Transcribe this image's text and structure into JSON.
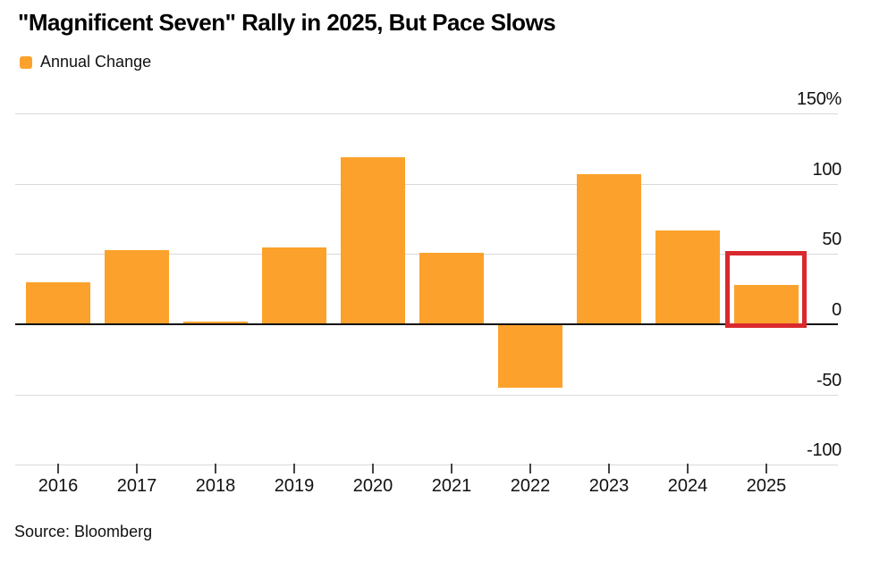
{
  "header": {
    "title": "\"Magnificent Seven\" Rally in 2025, But Pace Slows"
  },
  "legend": {
    "label": "Annual Change"
  },
  "source": {
    "text": "Source: Bloomberg"
  },
  "colors": {
    "bar": "#FCA22C",
    "highlight": "#D9292E",
    "grid": "#D9D9D9",
    "zero_line": "#111111"
  },
  "highlight": {
    "year": "2025"
  },
  "chart_data": {
    "type": "bar",
    "title": "\"Magnificent Seven\" Rally in 2025, But Pace Slows",
    "series_name": "Annual Change",
    "categories": [
      "2016",
      "2017",
      "2018",
      "2019",
      "2020",
      "2021",
      "2022",
      "2023",
      "2024",
      "2025"
    ],
    "values": [
      30,
      53,
      2,
      55,
      119,
      51,
      -45,
      107,
      67,
      28
    ],
    "unit": "%",
    "xlabel": "",
    "ylabel": "",
    "ylim": [
      -100,
      150
    ],
    "grid": true,
    "legend_position": "top-left",
    "yticks": [
      {
        "value": 150,
        "label": "150%"
      },
      {
        "value": 100,
        "label": "100"
      },
      {
        "value": 50,
        "label": "50"
      },
      {
        "value": 0,
        "label": "0"
      },
      {
        "value": -50,
        "label": "-50"
      },
      {
        "value": -100,
        "label": "-100"
      }
    ],
    "annotation": "red box highlighting the 2025 bar"
  }
}
